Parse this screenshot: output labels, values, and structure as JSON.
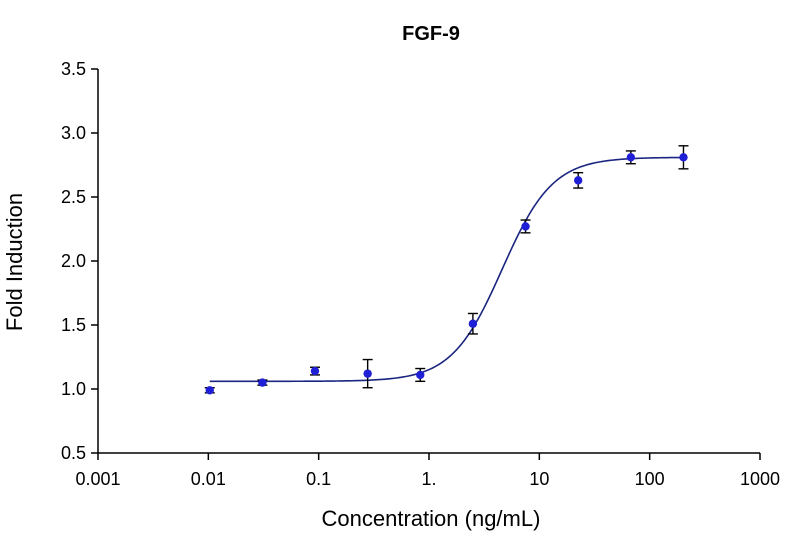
{
  "chart_data": {
    "type": "scatter",
    "title": "FGF-9",
    "xlabel": "Concentration (ng/mL)",
    "ylabel": "Fold Induction",
    "x_scale": "log",
    "xlim": [
      0.001,
      1000
    ],
    "ylim": [
      0.5,
      3.5
    ],
    "x_ticks": [
      0.001,
      0.01,
      0.1,
      1,
      10,
      100,
      1000
    ],
    "x_tick_labels": [
      "0.001",
      "0.01",
      "0.1",
      "1.",
      "10",
      "100",
      "1000"
    ],
    "y_ticks": [
      0.5,
      1.0,
      1.5,
      2.0,
      2.5,
      3.0,
      3.5
    ],
    "y_tick_labels": [
      "0.5",
      "1.0",
      "1.5",
      "2.0",
      "2.5",
      "3.0",
      "3.5"
    ],
    "grid": false,
    "legend": "none",
    "series": [
      {
        "x": [
          0.0103,
          0.0309,
          0.0926,
          0.278,
          0.833,
          2.5,
          7.5,
          22.5,
          67.5,
          202.5
        ],
        "y": [
          0.99,
          1.05,
          1.14,
          1.12,
          1.11,
          1.51,
          2.27,
          2.63,
          2.81,
          2.81
        ],
        "error": [
          0.02,
          0.02,
          0.03,
          0.11,
          0.05,
          0.08,
          0.05,
          0.06,
          0.05,
          0.09
        ]
      }
    ],
    "fit_curve": {
      "model": "4PL",
      "bottom": 1.06,
      "top": 2.81,
      "ec50": 4.6,
      "hill": 1.9
    },
    "colors": {
      "points": "#1f1fd6",
      "curve": "#1a2680",
      "error_bars": "#000000"
    }
  }
}
